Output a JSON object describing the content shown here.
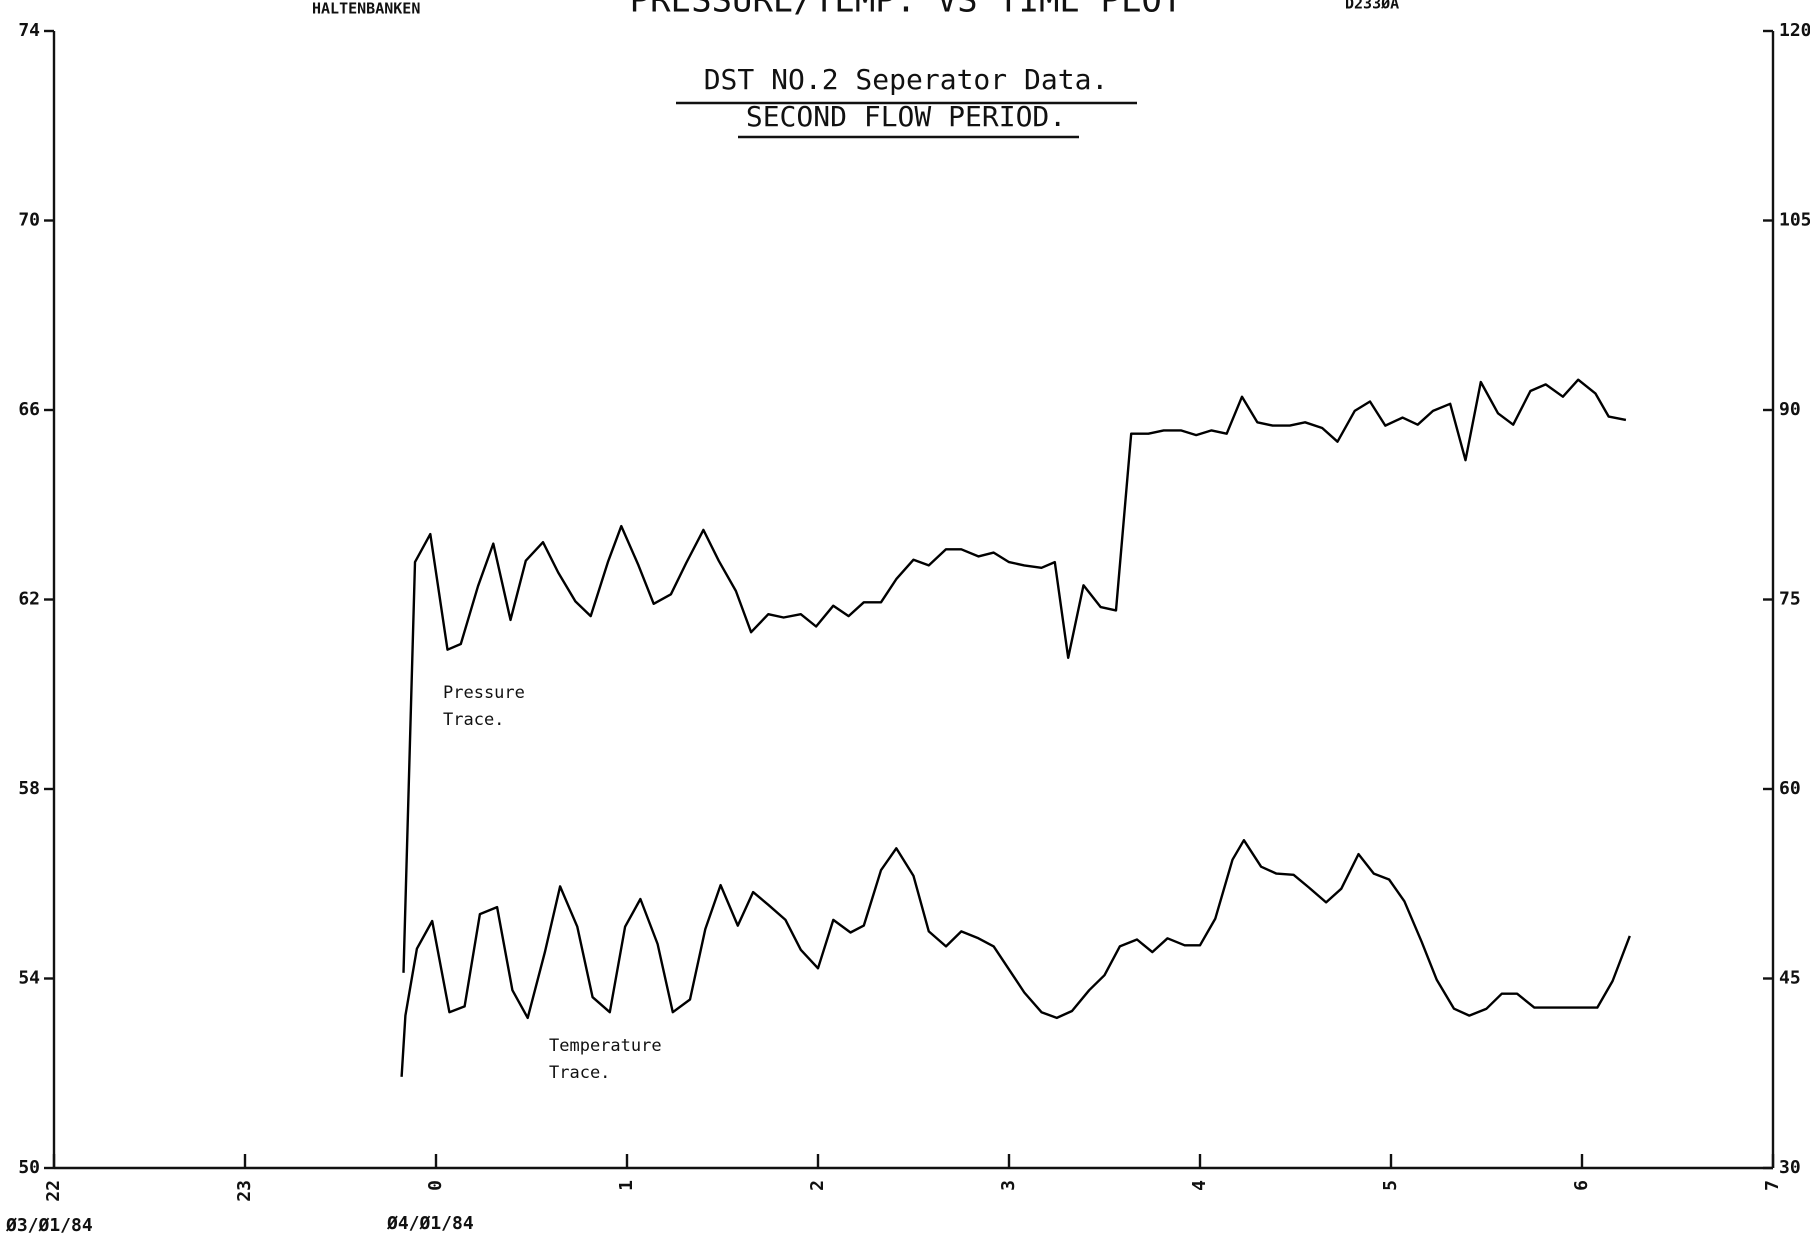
{
  "chart_data": {
    "type": "line",
    "title": "PRESSURE/TEMP. VS TIME PLOT",
    "field": "HALTENBANKEN",
    "well": "D233ØA",
    "subtitle": [
      "DST NO.2  Seperator Data.",
      "SECOND FLOW PERIOD."
    ],
    "annotations": [
      "Pressure",
      "Trace.",
      "Temperature",
      "Trace."
    ],
    "dates": [
      "Ø3/Ø1/84",
      "Ø4/Ø1/84"
    ],
    "xlim": [
      22,
      31
    ],
    "xticks": [
      22,
      23,
      {
        "value": 24,
        "label": "0"
      },
      {
        "value": 25,
        "label": "1"
      },
      {
        "value": 26,
        "label": "2"
      },
      {
        "value": 27,
        "label": "3"
      },
      {
        "value": 28,
        "label": "4"
      },
      {
        "value": 29,
        "label": "5"
      },
      {
        "value": 30,
        "label": "6"
      },
      {
        "value": 31,
        "label": "7"
      }
    ],
    "ylim": [
      50,
      74
    ],
    "yticks": [
      50,
      54,
      58,
      62,
      66,
      70,
      74
    ],
    "y2lim": [
      30,
      120
    ],
    "y2ticks": [
      30,
      45,
      60,
      75,
      90,
      105,
      120
    ],
    "series": [
      {
        "color": "#000000",
        "x": [
          23.83,
          23.89,
          23.97,
          24.06,
          24.13,
          24.22,
          24.3,
          24.39,
          24.47,
          24.56,
          24.64,
          24.73,
          24.81,
          24.9,
          24.97,
          25.06,
          25.14,
          25.23,
          25.31,
          25.4,
          25.48,
          25.57,
          25.65,
          25.74,
          25.82,
          25.91,
          25.99,
          26.08,
          26.16,
          26.24,
          26.33,
          26.41,
          26.5,
          26.58,
          26.67,
          26.75,
          26.84,
          26.92,
          27.0,
          27.08,
          27.17,
          27.24,
          27.31,
          27.39,
          27.48,
          27.56,
          27.64,
          27.73,
          27.81,
          27.9,
          27.98,
          28.06,
          28.14,
          28.22,
          28.3,
          28.38,
          28.47,
          28.55,
          28.64,
          28.72,
          28.81,
          28.89,
          28.97,
          29.06,
          29.14,
          29.22,
          29.31,
          29.39,
          29.47,
          29.56,
          29.64,
          29.73,
          29.81,
          29.9,
          29.98,
          30.07,
          30.14,
          30.23
        ],
        "values": [
          54.12,
          62.79,
          63.38,
          60.94,
          61.06,
          62.28,
          63.18,
          61.57,
          62.82,
          63.21,
          62.57,
          61.96,
          61.65,
          62.79,
          63.55,
          62.72,
          61.91,
          62.11,
          62.77,
          63.47,
          62.82,
          62.18,
          61.31,
          61.69,
          61.62,
          61.69,
          61.43,
          61.87,
          61.65,
          61.94,
          61.94,
          62.43,
          62.84,
          62.72,
          63.06,
          63.06,
          62.91,
          62.99,
          62.79,
          62.72,
          62.67,
          62.79,
          60.77,
          62.3,
          61.84,
          61.77,
          65.5,
          65.5,
          65.57,
          65.57,
          65.47,
          65.57,
          65.5,
          66.28,
          65.74,
          65.67,
          65.67,
          65.74,
          65.62,
          65.33,
          65.98,
          66.18,
          65.67,
          65.84,
          65.69,
          65.98,
          66.13,
          64.94,
          66.59,
          65.93,
          65.69,
          66.4,
          66.54,
          66.28,
          66.64,
          66.35,
          65.86,
          65.79
        ]
      },
      {
        "color": "#000000",
        "axis": "y2",
        "x": [
          23.82,
          23.84,
          23.9,
          23.98,
          24.07,
          24.15,
          24.23,
          24.32,
          24.4,
          24.48,
          24.57,
          24.65,
          24.74,
          24.82,
          24.91,
          24.99,
          25.07,
          25.16,
          25.24,
          25.33,
          25.41,
          25.49,
          25.58,
          25.66,
          25.74,
          25.83,
          25.91,
          26.0,
          26.08,
          26.17,
          26.24,
          26.33,
          26.41,
          26.5,
          26.58,
          26.67,
          26.75,
          26.84,
          26.92,
          27.0,
          27.08,
          27.17,
          27.25,
          27.33,
          27.42,
          27.5,
          27.58,
          27.67,
          27.75,
          27.83,
          27.92,
          28.0,
          28.08,
          28.17,
          28.23,
          28.32,
          28.4,
          28.49,
          28.57,
          28.66,
          28.74,
          28.83,
          28.91,
          28.99,
          29.07,
          29.16,
          29.24,
          29.33,
          29.41,
          29.5,
          29.58,
          29.66,
          29.75,
          29.83,
          29.91,
          30.0,
          30.08,
          30.16,
          30.25
        ],
        "values": [
          37.22,
          42.06,
          47.36,
          49.55,
          42.33,
          42.79,
          50.1,
          50.65,
          44.07,
          41.88,
          47.09,
          52.29,
          49.1,
          43.52,
          42.33,
          49.1,
          51.29,
          47.73,
          42.33,
          43.34,
          48.91,
          52.39,
          49.19,
          51.84,
          50.83,
          49.64,
          47.27,
          45.81,
          49.64,
          48.64,
          49.19,
          53.57,
          55.31,
          53.12,
          48.73,
          47.54,
          48.73,
          48.18,
          47.54,
          45.72,
          43.89,
          42.33,
          41.88,
          42.43,
          44.07,
          45.26,
          47.54,
          48.09,
          47.09,
          48.18,
          47.63,
          47.63,
          49.74,
          54.4,
          55.95,
          53.85,
          53.3,
          53.21,
          52.2,
          51.02,
          52.11,
          54.85,
          53.3,
          52.84,
          51.11,
          47.91,
          44.89,
          42.61,
          42.06,
          42.61,
          43.8,
          43.8,
          42.7,
          42.7,
          42.7,
          42.7,
          42.7,
          44.8,
          48.37
        ]
      }
    ]
  }
}
